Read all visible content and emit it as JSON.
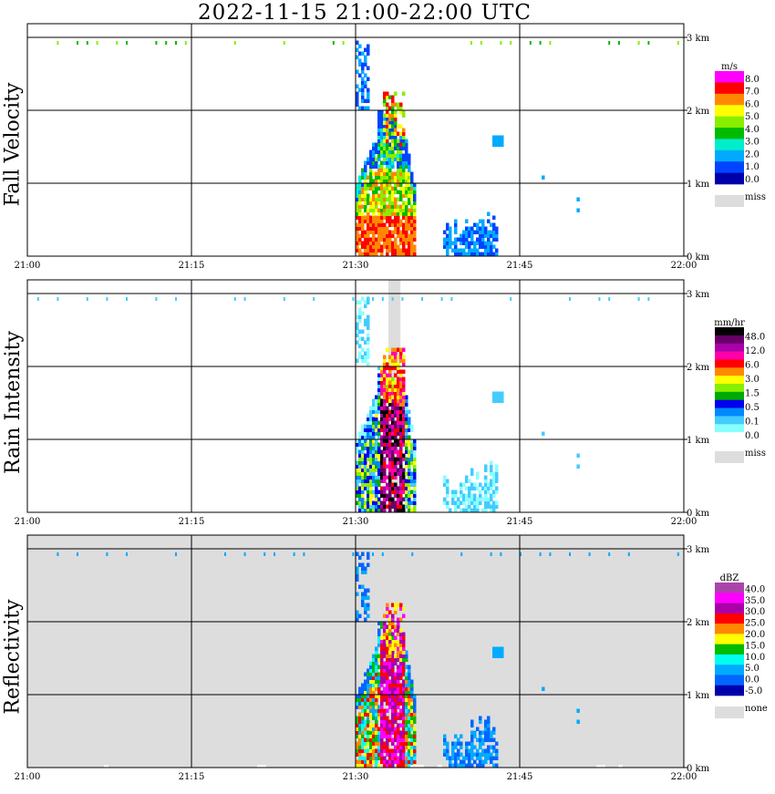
{
  "title": "2022-11-15   21:00-22:00 UTC",
  "time_ticks": [
    "21:00",
    "21:15",
    "21:30",
    "21:45",
    "22:00"
  ],
  "height_ticks": [
    "0 km",
    "1 km",
    "2 km",
    "3 km"
  ],
  "chart_data": [
    {
      "type": "heatmap",
      "title": "",
      "ylabel": "Fall Velocity",
      "xlim": [
        "21:00",
        "22:00"
      ],
      "ylim_km": [
        0,
        3
      ],
      "grid": true,
      "colorbar": {
        "unit": "m/s",
        "labels": [
          "8.0",
          "7.0",
          "6.0",
          "5.0",
          "4.0",
          "3.0",
          "2.0",
          "1.0",
          "0.0"
        ],
        "colors": [
          "#ff00ff",
          "#ff0000",
          "#ff8800",
          "#ffff00",
          "#88ee00",
          "#00bb00",
          "#00eecc",
          "#00aaff",
          "#0044ff",
          "#0000aa"
        ],
        "missing_label": "miss",
        "missing_color": "#dddddd"
      }
    },
    {
      "type": "heatmap",
      "title": "",
      "ylabel": "Rain Intensity",
      "xlim": [
        "21:00",
        "22:00"
      ],
      "ylim_km": [
        0,
        3
      ],
      "grid": true,
      "colorbar": {
        "unit": "mm/hr",
        "labels": [
          "48.0",
          "12.0",
          "6.0",
          "3.0",
          "1.5",
          "0.5",
          "0.1",
          "0.0"
        ],
        "colors": [
          "#000000",
          "#660066",
          "#aa00aa",
          "#ff00aa",
          "#ff0000",
          "#ff8800",
          "#ffff00",
          "#88ee00",
          "#00aa00",
          "#0000ee",
          "#0088ff",
          "#44ccff",
          "#88ffff",
          "#ffffff"
        ],
        "missing_label": "miss",
        "missing_color": "#dddddd"
      }
    },
    {
      "type": "heatmap",
      "title": "",
      "ylabel": "Reflectivity",
      "xlim": [
        "21:00",
        "22:00"
      ],
      "ylim_km": [
        0,
        3
      ],
      "grid": true,
      "colorbar": {
        "unit": "dBZ",
        "labels": [
          "40.0",
          "35.0",
          "30.0",
          "25.0",
          "20.0",
          "15.0",
          "10.0",
          "5.0",
          "0.0",
          "-5.0"
        ],
        "colors": [
          "#aa44aa",
          "#ff00ff",
          "#aa00aa",
          "#ff0000",
          "#ff8800",
          "#ffff00",
          "#00bb00",
          "#00ffee",
          "#00aaff",
          "#0066ff",
          "#0000aa"
        ],
        "missing_label": "none",
        "missing_color": "#dddddd"
      }
    }
  ]
}
